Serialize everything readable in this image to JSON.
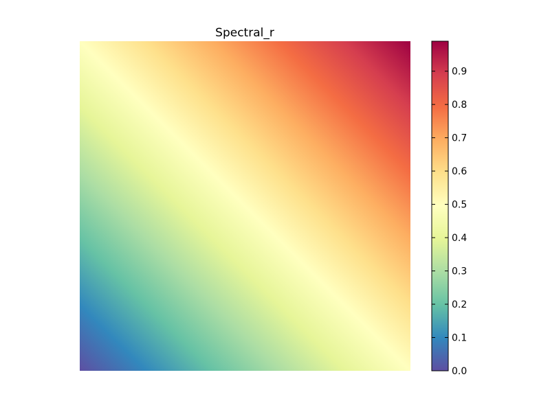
{
  "chart_data": {
    "type": "heatmap",
    "title": "Spectral_r",
    "colormap": "Spectral_r",
    "description_field": "diagonal gradient: value increases from bottom-left (0) to top-right (~1)",
    "values": {
      "bottom_left": 0.0,
      "top_left": 0.5,
      "bottom_right": 0.5,
      "top_right": 0.99
    },
    "colorbar": {
      "range": [
        0.0,
        0.99
      ],
      "tick_labels": [
        "0.0",
        "0.1",
        "0.2",
        "0.3",
        "0.4",
        "0.5",
        "0.6",
        "0.7",
        "0.8",
        "0.9"
      ],
      "tick_values": [
        0.0,
        0.1,
        0.2,
        0.3,
        0.4,
        0.5,
        0.6,
        0.7,
        0.8,
        0.9
      ]
    },
    "axes_visible": false,
    "colors": {
      "stops": [
        "#5e4fa2",
        "#3288bd",
        "#66c2a5",
        "#abdda4",
        "#e6f598",
        "#ffffbf",
        "#fee08b",
        "#fdae61",
        "#f46d43",
        "#d53e4f",
        "#9e0142"
      ]
    }
  }
}
